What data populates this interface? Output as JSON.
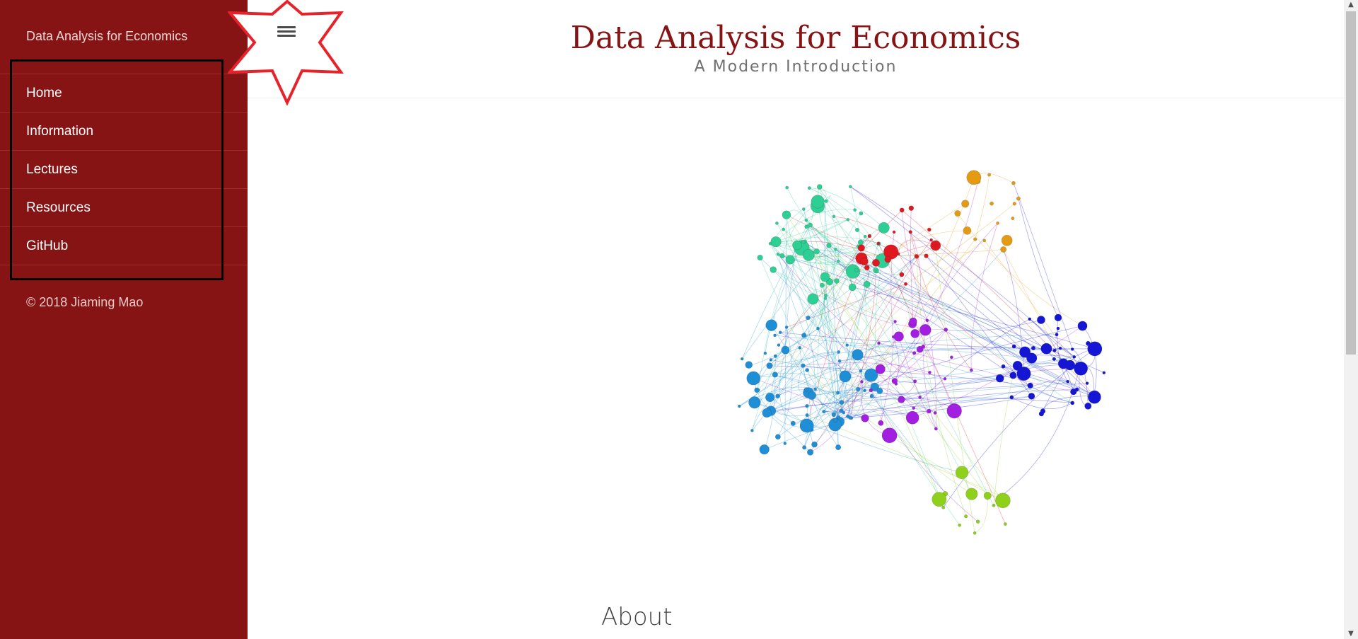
{
  "sidebar": {
    "brand": "Data Analysis for Economics",
    "items": [
      {
        "label": "Home"
      },
      {
        "label": "Information"
      },
      {
        "label": "Lectures"
      },
      {
        "label": "Resources"
      },
      {
        "label": "GitHub"
      }
    ],
    "copyright": "© 2018 Jiaming Mao",
    "background_color": "#861414"
  },
  "header": {
    "title": "Data Analysis for Economics",
    "subtitle": "A Modern Introduction",
    "title_color": "#861414"
  },
  "toolbar": {
    "menu_icon": "hamburger-menu-icon"
  },
  "annotations": {
    "star_color": "#e8222a",
    "box_color": "#000000"
  },
  "main": {
    "hero_image": "network-graph-image",
    "about_heading": "About"
  }
}
